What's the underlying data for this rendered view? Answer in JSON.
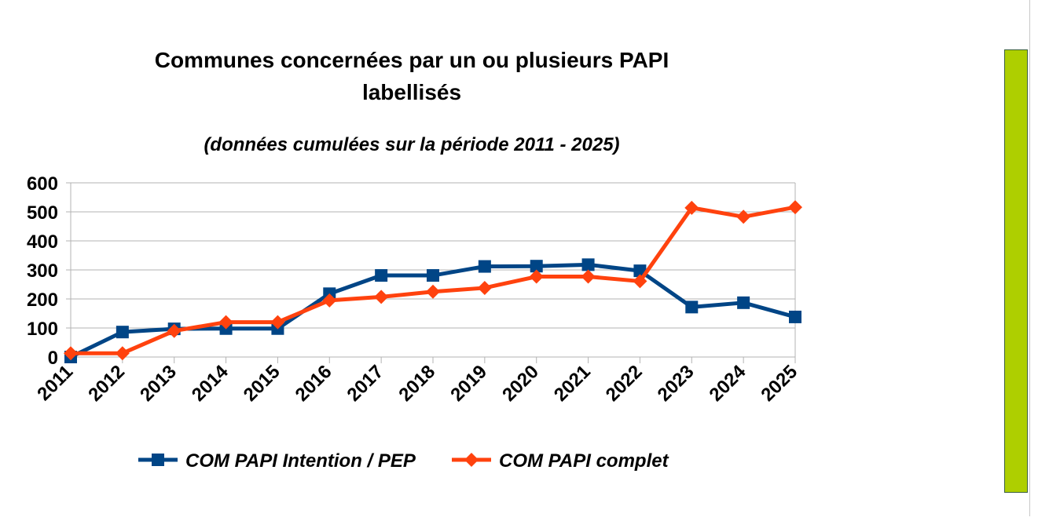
{
  "chart_data": {
    "type": "line",
    "title": "Communes concernées par un ou plusieurs PAPI labellisés",
    "title_lines": [
      "Communes concernées par un ou plusieurs PAPI",
      "labellisés"
    ],
    "subtitle": "(données cumulées sur la période 2011 - 2025)",
    "xlabel": "",
    "ylabel": "",
    "categories": [
      "2011",
      "2012",
      "2013",
      "2014",
      "2015",
      "2016",
      "2017",
      "2018",
      "2019",
      "2020",
      "2021",
      "2022",
      "2023",
      "2024",
      "2025"
    ],
    "ylim": [
      0,
      600
    ],
    "yticks": [
      "0",
      "100",
      "200",
      "300",
      "400",
      "500",
      "600"
    ],
    "grid": true,
    "legend_position": "bottom",
    "series": [
      {
        "name": "COM PAPI Intention / PEP",
        "color": "#004586",
        "marker": "square",
        "values": [
          0,
          86,
          97,
          98,
          98,
          218,
          281,
          281,
          312,
          313,
          318,
          297,
          172,
          187,
          138
        ]
      },
      {
        "name": "COM PAPI complet",
        "color": "#ff420e",
        "marker": "diamond",
        "values": [
          13,
          13,
          90,
          120,
          120,
          195,
          207,
          225,
          238,
          277,
          277,
          261,
          514,
          483,
          516
        ]
      }
    ]
  },
  "side_panel": {
    "accent_color": "#aecf00"
  }
}
